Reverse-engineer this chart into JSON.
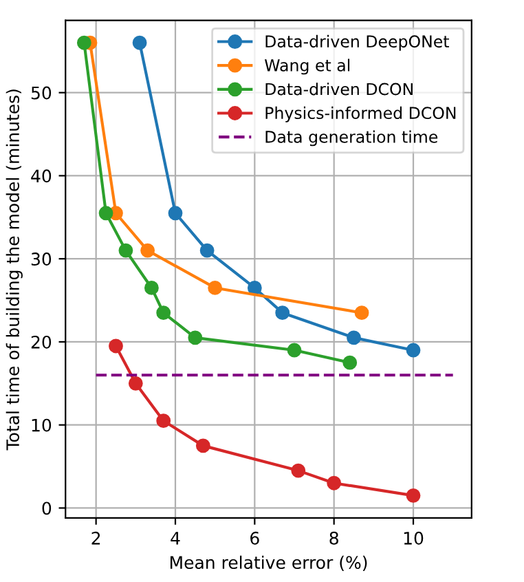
{
  "chart_data": {
    "type": "line",
    "xlabel": "Mean relative error (%)",
    "ylabel": "Total time of building the model (minutes)",
    "series": [
      {
        "name": "Data-driven DeepONet",
        "color": "#1f77b4",
        "x": [
          3.1,
          4,
          4.8,
          6,
          6.7,
          8.5,
          10
        ],
        "values": [
          56,
          35.5,
          31,
          26.5,
          23.5,
          20.5,
          19
        ]
      },
      {
        "name": "Wang et al",
        "color": "#ff7f0e",
        "x": [
          1.85,
          2.5,
          3.3,
          5,
          8.7
        ],
        "values": [
          56,
          35.5,
          31,
          26.5,
          23.5
        ]
      },
      {
        "name": "Data-driven DCON",
        "color": "#2ca02c",
        "x": [
          1.7,
          2.25,
          2.75,
          3.4,
          3.7,
          4.5,
          7,
          8.4
        ],
        "values": [
          56,
          35.5,
          31,
          26.5,
          23.5,
          20.5,
          19,
          17.5
        ]
      },
      {
        "name": "Physics-informed DCON",
        "color": "#d62728",
        "x": [
          2.5,
          3,
          3.7,
          4.7,
          7.1,
          8,
          10
        ],
        "values": [
          19.5,
          15,
          10.5,
          7.5,
          4.5,
          3,
          1.5
        ]
      },
      {
        "name": "Data generation time",
        "color": "#800080",
        "x": [
          2,
          11
        ],
        "values": [
          16,
          16
        ],
        "marker": "none",
        "line_style": "dashed"
      }
    ],
    "marker": "circle",
    "line_style": "solid",
    "xlim": [
      1.23,
      11.47
    ],
    "ylim": [
      -1.2,
      58.7
    ],
    "xticks": [
      2,
      4,
      6,
      8,
      10
    ],
    "yticks": [
      0,
      10,
      20,
      30,
      40,
      50
    ],
    "grid": true,
    "legend": "top right"
  }
}
